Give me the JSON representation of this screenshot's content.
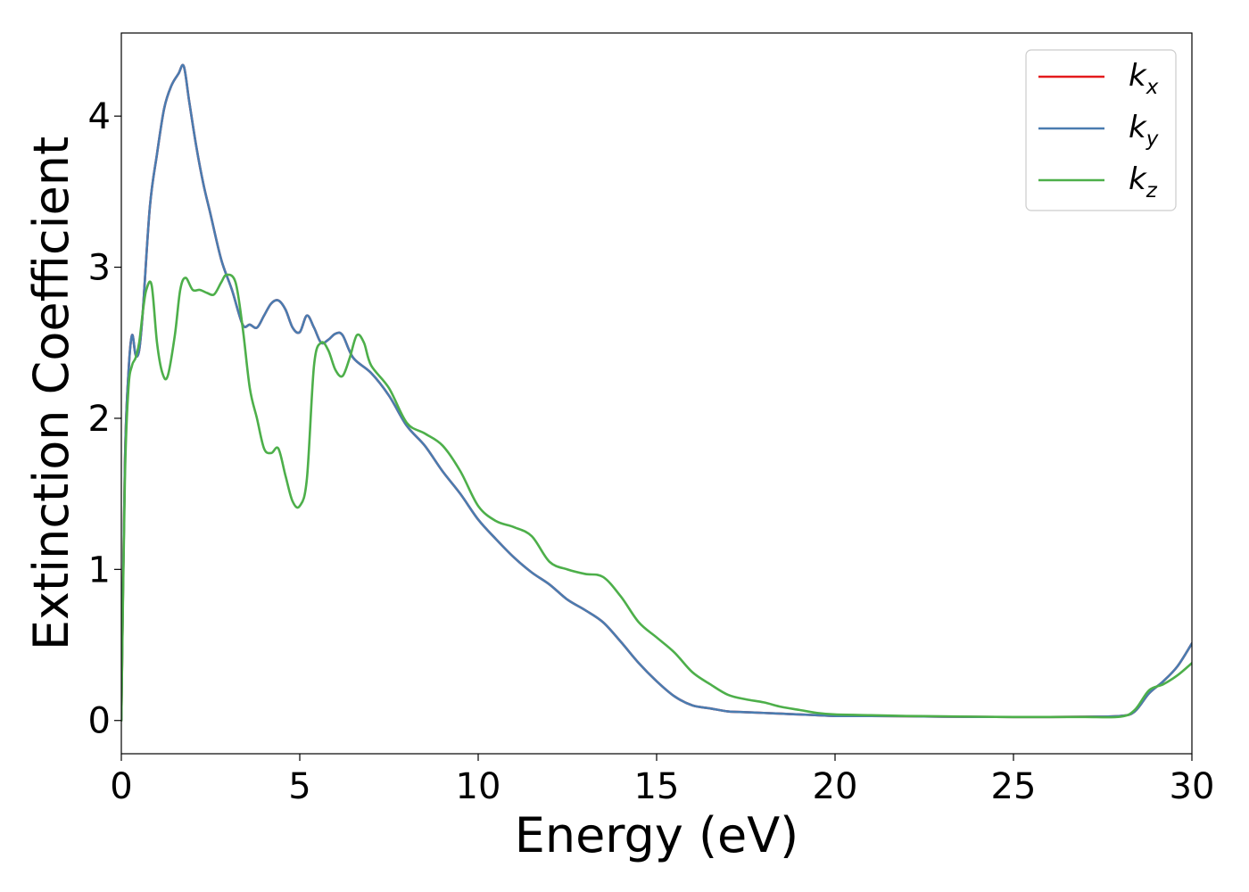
{
  "chart_data": {
    "type": "line",
    "xlabel": "Energy (eV)",
    "ylabel": "Extinction Coefficient",
    "xlim": [
      0,
      30
    ],
    "ylim": [
      -0.22,
      4.55
    ],
    "xticks": [
      0,
      5,
      10,
      15,
      20,
      25,
      30
    ],
    "yticks": [
      0,
      1,
      2,
      3,
      4
    ],
    "grid": false,
    "legend_position": "top-right",
    "series": [
      {
        "name": "k_x",
        "label_base": "k",
        "label_sub": "x",
        "color": "#e41a1c",
        "x": [
          0,
          0.1,
          0.2,
          0.3,
          0.4,
          0.5,
          0.6,
          0.8,
          1.0,
          1.2,
          1.4,
          1.6,
          1.75,
          1.9,
          2.1,
          2.3,
          2.5,
          2.8,
          3.1,
          3.4,
          3.6,
          3.8,
          4.0,
          4.2,
          4.4,
          4.6,
          4.8,
          5.0,
          5.2,
          5.4,
          5.6,
          5.8,
          6.0,
          6.2,
          6.5,
          7.0,
          7.5,
          8.0,
          8.5,
          9.0,
          9.5,
          10.0,
          10.5,
          11.0,
          11.5,
          12.0,
          12.5,
          13.0,
          13.5,
          14.0,
          14.5,
          15.0,
          15.5,
          16.0,
          16.5,
          17.0,
          17.5,
          18.0,
          18.5,
          19.0,
          19.5,
          20.0,
          21.0,
          22.0,
          23.0,
          24.0,
          25.0,
          26.0,
          27.0,
          28.0,
          28.4,
          28.8,
          29.2,
          29.6,
          30.0
        ],
        "y": [
          0,
          1.7,
          2.3,
          2.55,
          2.42,
          2.45,
          2.7,
          3.4,
          3.75,
          4.05,
          4.2,
          4.28,
          4.33,
          4.1,
          3.8,
          3.55,
          3.35,
          3.05,
          2.85,
          2.62,
          2.62,
          2.6,
          2.68,
          2.76,
          2.78,
          2.72,
          2.6,
          2.57,
          2.68,
          2.6,
          2.5,
          2.52,
          2.56,
          2.55,
          2.4,
          2.3,
          2.15,
          1.95,
          1.82,
          1.65,
          1.5,
          1.33,
          1.2,
          1.08,
          0.98,
          0.9,
          0.8,
          0.73,
          0.65,
          0.52,
          0.38,
          0.26,
          0.16,
          0.1,
          0.08,
          0.06,
          0.055,
          0.05,
          0.045,
          0.04,
          0.035,
          0.03,
          0.03,
          0.028,
          0.025,
          0.024,
          0.023,
          0.023,
          0.025,
          0.03,
          0.06,
          0.18,
          0.26,
          0.36,
          0.51
        ]
      },
      {
        "name": "k_y",
        "label_base": "k",
        "label_sub": "y",
        "color": "#4a7cb0",
        "x": [
          0,
          0.1,
          0.2,
          0.3,
          0.4,
          0.5,
          0.6,
          0.8,
          1.0,
          1.2,
          1.4,
          1.6,
          1.75,
          1.9,
          2.1,
          2.3,
          2.5,
          2.8,
          3.1,
          3.4,
          3.6,
          3.8,
          4.0,
          4.2,
          4.4,
          4.6,
          4.8,
          5.0,
          5.2,
          5.4,
          5.6,
          5.8,
          6.0,
          6.2,
          6.5,
          7.0,
          7.5,
          8.0,
          8.5,
          9.0,
          9.5,
          10.0,
          10.5,
          11.0,
          11.5,
          12.0,
          12.5,
          13.0,
          13.5,
          14.0,
          14.5,
          15.0,
          15.5,
          16.0,
          16.5,
          17.0,
          17.5,
          18.0,
          18.5,
          19.0,
          19.5,
          20.0,
          21.0,
          22.0,
          23.0,
          24.0,
          25.0,
          26.0,
          27.0,
          28.0,
          28.4,
          28.8,
          29.2,
          29.6,
          30.0
        ],
        "y": [
          0,
          1.7,
          2.3,
          2.55,
          2.42,
          2.45,
          2.7,
          3.4,
          3.75,
          4.05,
          4.2,
          4.28,
          4.33,
          4.1,
          3.8,
          3.55,
          3.35,
          3.05,
          2.85,
          2.62,
          2.62,
          2.6,
          2.68,
          2.76,
          2.78,
          2.72,
          2.6,
          2.57,
          2.68,
          2.6,
          2.5,
          2.52,
          2.56,
          2.55,
          2.4,
          2.3,
          2.15,
          1.95,
          1.82,
          1.65,
          1.5,
          1.33,
          1.2,
          1.08,
          0.98,
          0.9,
          0.8,
          0.73,
          0.65,
          0.52,
          0.38,
          0.26,
          0.16,
          0.1,
          0.08,
          0.06,
          0.055,
          0.05,
          0.045,
          0.04,
          0.035,
          0.03,
          0.03,
          0.028,
          0.025,
          0.024,
          0.023,
          0.023,
          0.025,
          0.03,
          0.06,
          0.18,
          0.26,
          0.36,
          0.51
        ]
      },
      {
        "name": "k_z",
        "label_base": "k",
        "label_sub": "z",
        "color": "#4daf4a",
        "x": [
          0,
          0.1,
          0.2,
          0.3,
          0.4,
          0.5,
          0.6,
          0.7,
          0.85,
          1.0,
          1.15,
          1.3,
          1.5,
          1.65,
          1.8,
          2.0,
          2.2,
          2.4,
          2.6,
          2.8,
          2.95,
          3.2,
          3.4,
          3.6,
          3.8,
          4.0,
          4.2,
          4.4,
          4.6,
          4.8,
          5.0,
          5.2,
          5.4,
          5.6,
          5.8,
          6.0,
          6.2,
          6.4,
          6.6,
          6.8,
          7.0,
          7.5,
          8.0,
          8.5,
          9.0,
          9.5,
          10.0,
          10.5,
          11.0,
          11.5,
          12.0,
          12.5,
          13.0,
          13.5,
          14.0,
          14.5,
          15.0,
          15.5,
          16.0,
          16.5,
          17.0,
          17.5,
          18.0,
          18.5,
          19.0,
          19.5,
          20.0,
          21.0,
          22.0,
          23.0,
          24.0,
          25.0,
          26.0,
          27.0,
          28.0,
          28.4,
          28.8,
          29.2,
          29.6,
          30.0
        ],
        "y": [
          0,
          1.6,
          2.2,
          2.35,
          2.4,
          2.5,
          2.7,
          2.85,
          2.88,
          2.5,
          2.3,
          2.28,
          2.55,
          2.85,
          2.93,
          2.85,
          2.85,
          2.83,
          2.82,
          2.9,
          2.95,
          2.9,
          2.6,
          2.2,
          2.0,
          1.8,
          1.77,
          1.8,
          1.62,
          1.45,
          1.42,
          1.6,
          2.35,
          2.5,
          2.45,
          2.32,
          2.28,
          2.4,
          2.55,
          2.5,
          2.35,
          2.2,
          1.97,
          1.9,
          1.82,
          1.65,
          1.42,
          1.32,
          1.28,
          1.22,
          1.05,
          1.0,
          0.97,
          0.95,
          0.82,
          0.65,
          0.55,
          0.45,
          0.32,
          0.24,
          0.17,
          0.14,
          0.12,
          0.09,
          0.07,
          0.05,
          0.04,
          0.035,
          0.03,
          0.028,
          0.025,
          0.023,
          0.023,
          0.023,
          0.025,
          0.07,
          0.2,
          0.24,
          0.3,
          0.38
        ]
      }
    ]
  }
}
